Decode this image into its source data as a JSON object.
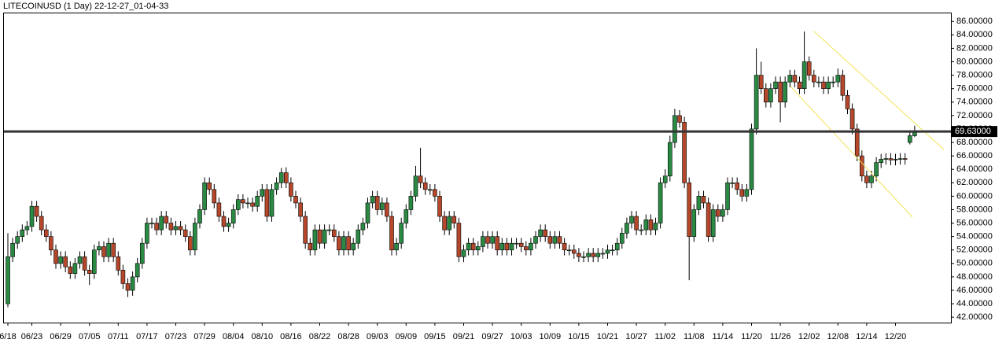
{
  "chart_data": {
    "type": "candlestick",
    "title": "LITECOINUSD (1 Day) 22-12-27_01-04-33",
    "up_color": "#2a8a43",
    "down_color": "#b5472b",
    "ylim": [
      41.2,
      87.2
    ],
    "yticks": [
      {
        "value": 42,
        "label": "42.00000"
      },
      {
        "value": 44,
        "label": "44.00000"
      },
      {
        "value": 46,
        "label": "46.00000"
      },
      {
        "value": 48,
        "label": "48.00000"
      },
      {
        "value": 50,
        "label": "50.00000"
      },
      {
        "value": 52,
        "label": "52.00000"
      },
      {
        "value": 54,
        "label": "54.00000"
      },
      {
        "value": 56,
        "label": "56.00000"
      },
      {
        "value": 58,
        "label": "58.00000"
      },
      {
        "value": 60,
        "label": "60.00000"
      },
      {
        "value": 62,
        "label": "62.00000"
      },
      {
        "value": 64,
        "label": "64.00000"
      },
      {
        "value": 66,
        "label": "66.00000"
      },
      {
        "value": 68,
        "label": "68.00000"
      },
      {
        "value": 70,
        "label": "70.00000"
      },
      {
        "value": 72,
        "label": "72.00000"
      },
      {
        "value": 74,
        "label": "74.00000"
      },
      {
        "value": 76,
        "label": "76.00000"
      },
      {
        "value": 78,
        "label": "78.00000"
      },
      {
        "value": 80,
        "label": "80.00000"
      },
      {
        "value": 82,
        "label": "82.00000"
      },
      {
        "value": 84,
        "label": "84.00000"
      },
      {
        "value": 86,
        "label": "86.00000"
      }
    ],
    "price_line": {
      "value": 69.63,
      "label": "69.63000"
    },
    "categories": [
      "6/18",
      null,
      null,
      null,
      null,
      "06/23",
      null,
      null,
      null,
      null,
      null,
      "06/29",
      null,
      null,
      null,
      null,
      null,
      "07/05",
      null,
      null,
      null,
      null,
      null,
      "07/11",
      null,
      null,
      null,
      null,
      null,
      "07/17",
      null,
      null,
      null,
      null,
      null,
      "07/23",
      null,
      null,
      null,
      null,
      null,
      "07/29",
      null,
      null,
      null,
      null,
      null,
      "08/04",
      null,
      null,
      null,
      null,
      null,
      "08/10",
      null,
      null,
      null,
      null,
      null,
      "08/16",
      null,
      null,
      null,
      null,
      null,
      "08/22",
      null,
      null,
      null,
      null,
      null,
      "08/28",
      null,
      null,
      null,
      null,
      null,
      "09/03",
      null,
      null,
      null,
      null,
      null,
      "09/09",
      null,
      null,
      null,
      null,
      null,
      "09/15",
      null,
      null,
      null,
      null,
      null,
      "09/21",
      null,
      null,
      null,
      null,
      null,
      "09/27",
      null,
      null,
      null,
      null,
      null,
      "10/03",
      null,
      null,
      null,
      null,
      null,
      "10/09",
      null,
      null,
      null,
      null,
      null,
      "10/15",
      null,
      null,
      null,
      null,
      null,
      "10/21",
      null,
      null,
      null,
      null,
      null,
      "10/27",
      null,
      null,
      null,
      null,
      null,
      "11/02",
      null,
      null,
      null,
      null,
      null,
      "11/08",
      null,
      null,
      null,
      null,
      null,
      "11/14",
      null,
      null,
      null,
      null,
      null,
      "11/20",
      null,
      null,
      null,
      null,
      null,
      "11/26",
      null,
      null,
      null,
      null,
      null,
      "12/02",
      null,
      null,
      null,
      null,
      null,
      "12/08",
      null,
      null,
      null,
      null,
      null,
      "12/14",
      null,
      null,
      null,
      null,
      null,
      "12/20",
      null,
      null,
      null,
      null
    ],
    "open": [
      44,
      51,
      53,
      54,
      55,
      55.5,
      58.5,
      57,
      55,
      54,
      52,
      50,
      51,
      49.5,
      48.5,
      50,
      51,
      49,
      48.5,
      52,
      52.5,
      51,
      53,
      51,
      49,
      47,
      46,
      48,
      50,
      53,
      56,
      56,
      55,
      57,
      56,
      55,
      55.5,
      55,
      54,
      52,
      56,
      58,
      62,
      61,
      59,
      57,
      55.5,
      56,
      58,
      59.5,
      59,
      59,
      58.5,
      60,
      61,
      57,
      61,
      62,
      63.5,
      62,
      60,
      59,
      57,
      53,
      52,
      55,
      53,
      55,
      55,
      54,
      52,
      54,
      52,
      53,
      55,
      56,
      59,
      60,
      58,
      59,
      57,
      52,
      53,
      56,
      58,
      60,
      63,
      62,
      61,
      61,
      60,
      57,
      55,
      57,
      56,
      51,
      52,
      53,
      52,
      52.5,
      54,
      53,
      54,
      52,
      53,
      52,
      53,
      53,
      52.5,
      52,
      53,
      54,
      55,
      54,
      53,
      54,
      53,
      52,
      52,
      51.5,
      51,
      51,
      51.5,
      51,
      51.5,
      51.5,
      52,
      52,
      53,
      54.5,
      56,
      57,
      55,
      55,
      56.5,
      55,
      56,
      62,
      63,
      68,
      72,
      71,
      62,
      54,
      58,
      60,
      59,
      54,
      58,
      57,
      58,
      62,
      62,
      61,
      60,
      61,
      70,
      78,
      76,
      74,
      76,
      77,
      74,
      77,
      78,
      77,
      76,
      80,
      78,
      77,
      77,
      76,
      77,
      77,
      78,
      75,
      73,
      70,
      66,
      63,
      62,
      63,
      65,
      65.5,
      65.6,
      65.4,
      65.5,
      65.6,
      68,
      69
    ],
    "high": [
      54.5,
      53.8,
      54.8,
      55.8,
      56.3,
      59.3,
      59.3,
      57.8,
      55.8,
      54.8,
      52.8,
      51.8,
      51.8,
      50.3,
      50.8,
      51.8,
      51.8,
      49.8,
      52.8,
      53.3,
      53.3,
      53.8,
      53.8,
      51.8,
      49.8,
      47.8,
      48.8,
      50.8,
      53.8,
      56.8,
      56.8,
      56.8,
      57.8,
      57.8,
      56.8,
      56.3,
      56.3,
      55.8,
      54.8,
      56.8,
      58.8,
      62.8,
      62.8,
      61.8,
      59.8,
      57.8,
      56.8,
      58.8,
      60.3,
      60.3,
      59.8,
      59.8,
      60.8,
      61.8,
      61.8,
      61.8,
      62.8,
      64.2,
      64.3,
      62.8,
      60.8,
      59.8,
      57.8,
      53.8,
      55.8,
      55.8,
      55.8,
      55.8,
      55.8,
      54.8,
      54.8,
      54.8,
      53.8,
      55.8,
      56.8,
      59.8,
      60.8,
      60.8,
      59.8,
      59.8,
      57.8,
      53.8,
      56.8,
      58.8,
      60.8,
      64.5,
      67.2,
      62.8,
      61.8,
      61.8,
      60.8,
      57.8,
      57.8,
      57.8,
      56.8,
      52.8,
      53.8,
      53.8,
      53.3,
      54.8,
      54.8,
      54.8,
      54.8,
      53.8,
      53.8,
      53.8,
      53.8,
      53.8,
      53.3,
      53.8,
      54.8,
      55.8,
      55.8,
      54.8,
      54.8,
      54.8,
      53.8,
      52.8,
      52.8,
      52.3,
      51.8,
      52.3,
      52.3,
      52.3,
      52.3,
      52.8,
      52.8,
      53.8,
      55.3,
      56.8,
      57.8,
      57.8,
      55.8,
      57.3,
      57.3,
      56.8,
      62.8,
      64,
      69,
      73,
      72.8,
      71.8,
      62.8,
      58.8,
      60.8,
      60.8,
      59.8,
      58.8,
      58.8,
      58.8,
      62.8,
      62.8,
      62.8,
      61.8,
      61.8,
      70.8,
      82,
      80,
      76.8,
      76.8,
      77.8,
      77.8,
      77.8,
      78.8,
      78.8,
      77.8,
      84.5,
      80.8,
      78.8,
      77.8,
      77.8,
      77.8,
      77.8,
      79,
      78.8,
      75.8,
      73.8,
      70.8,
      66.8,
      63.8,
      63.8,
      65.8,
      66.3,
      66.4,
      66.4,
      66.3,
      66.4,
      66.4,
      69.8,
      70.5
    ],
    "low": [
      43.5,
      50.2,
      52.2,
      53.2,
      54.2,
      54.7,
      56.2,
      54.2,
      53.2,
      51.2,
      49.2,
      49.2,
      48.7,
      47.7,
      47.7,
      49.2,
      48.2,
      46.8,
      47.7,
      51.2,
      50.2,
      50.2,
      50.2,
      48.2,
      46.2,
      45,
      45.2,
      47.2,
      49.2,
      52.2,
      55.2,
      54.2,
      54.2,
      55.2,
      54.2,
      54.2,
      54.2,
      53.2,
      51.2,
      51.2,
      55.2,
      57.2,
      60.2,
      58.2,
      56.2,
      54.7,
      54.7,
      55.2,
      57.2,
      58.2,
      58.2,
      57.7,
      57.7,
      59.2,
      56.2,
      56.2,
      60.2,
      61.2,
      61.2,
      59.2,
      58.2,
      56.2,
      52.2,
      51.2,
      51.2,
      52.2,
      52.2,
      54.2,
      53.2,
      51.2,
      51.2,
      51.2,
      51.2,
      52.2,
      54.2,
      55.2,
      58.2,
      57.2,
      57.2,
      56.2,
      51.2,
      51.2,
      52.2,
      55.2,
      57.2,
      59.2,
      61.2,
      60.2,
      60.2,
      59.2,
      56.2,
      54.2,
      54.2,
      55.2,
      50.2,
      50.2,
      51.2,
      51.2,
      51.2,
      51.7,
      52.2,
      52.2,
      51.2,
      51.2,
      51.2,
      51.2,
      52.2,
      51.7,
      51.2,
      51.2,
      52.2,
      53.2,
      53.2,
      52.2,
      52.2,
      52.2,
      51.2,
      51.2,
      50.7,
      50.2,
      50.2,
      50.2,
      50.2,
      50.2,
      50.7,
      50.7,
      51.2,
      51.2,
      52.2,
      53.7,
      55.2,
      54.2,
      54.2,
      54.2,
      54.2,
      54.2,
      55.2,
      61.2,
      62.2,
      67.2,
      70.2,
      61.2,
      47.5,
      53.2,
      57.2,
      58.2,
      53.2,
      53.2,
      56.2,
      56.2,
      57.2,
      61.2,
      60.2,
      59.2,
      59.2,
      60.2,
      69.2,
      75.2,
      73.2,
      73.2,
      75.2,
      71,
      73.2,
      76.2,
      76.2,
      75.2,
      75.2,
      77.2,
      76.2,
      76.2,
      75.2,
      75.2,
      76.2,
      76.2,
      74.2,
      72.2,
      69.2,
      65.2,
      62.2,
      61.2,
      61.2,
      62.2,
      64.2,
      64.7,
      64.6,
      64.6,
      64.7,
      64.7,
      67.7,
      68.8
    ],
    "close": [
      51,
      53,
      54,
      55,
      55.5,
      58.5,
      57,
      55,
      54,
      52,
      50,
      51,
      49.5,
      48.5,
      50,
      51,
      49,
      48.5,
      52,
      52.5,
      51,
      53,
      51,
      49,
      47,
      46,
      48,
      50,
      53,
      56,
      56,
      55,
      57,
      56,
      55,
      55.5,
      55,
      54,
      52,
      56,
      58,
      62,
      61,
      59,
      57,
      55.5,
      56,
      58,
      59.5,
      59,
      59,
      58.5,
      60,
      61,
      57,
      61,
      62,
      63.5,
      62,
      60,
      59,
      57,
      53,
      52,
      55,
      53,
      55,
      55,
      54,
      52,
      54,
      52,
      53,
      55,
      56,
      59,
      60,
      58,
      59,
      57,
      52,
      53,
      56,
      58,
      60,
      63,
      62,
      61,
      61,
      60,
      57,
      55,
      57,
      56,
      51,
      52,
      53,
      52,
      52.5,
      54,
      53,
      54,
      52,
      53,
      52,
      53,
      53,
      52.5,
      52,
      53,
      54,
      55,
      54,
      53,
      54,
      53,
      52,
      52,
      51.5,
      51,
      51,
      51.5,
      51,
      51.5,
      51.5,
      52,
      52,
      53,
      54.5,
      56,
      57,
      55,
      55,
      56.5,
      55,
      56,
      62,
      63,
      68,
      72,
      71,
      62,
      54,
      58,
      60,
      59,
      54,
      58,
      57,
      58,
      62,
      62,
      61,
      60,
      61,
      70,
      78,
      76,
      74,
      76,
      77,
      74,
      77,
      78,
      77,
      76,
      80,
      78,
      77,
      77,
      76,
      77,
      77,
      78,
      75,
      73,
      70,
      66,
      63,
      62,
      63,
      65,
      65.5,
      65.6,
      65.4,
      65.5,
      65.6,
      65.5,
      69,
      69.63
    ]
  }
}
